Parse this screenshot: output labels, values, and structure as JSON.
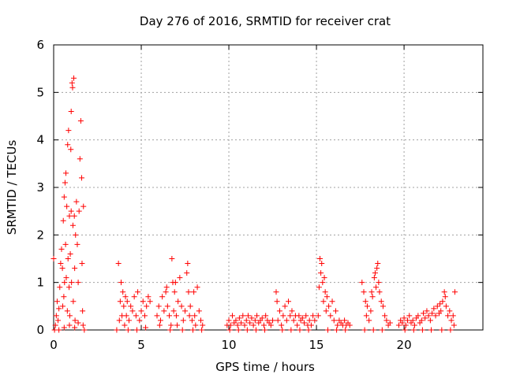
{
  "chart_data": {
    "type": "scatter",
    "title": "Day 276 of 2016, SRMTID for receiver crat",
    "xlabel": "GPS time / hours",
    "ylabel": "SRMTID / TECUs",
    "xlim": [
      0,
      24.5
    ],
    "ylim": [
      0,
      6
    ],
    "xticks": [
      0,
      5,
      10,
      15,
      20
    ],
    "yticks": [
      0,
      1,
      2,
      3,
      4,
      5,
      6
    ],
    "grid": true,
    "marker": "+",
    "marker_color": "#ff0000",
    "series": [
      {
        "name": "SRMTID",
        "points": [
          [
            0.0,
            1.5
          ],
          [
            0.1,
            0.1
          ],
          [
            0.15,
            0.3
          ],
          [
            0.2,
            0.6
          ],
          [
            0.25,
            0.2
          ],
          [
            0.3,
            0.45
          ],
          [
            0.35,
            0.9
          ],
          [
            0.4,
            1.4
          ],
          [
            0.45,
            1.7
          ],
          [
            0.5,
            1.3
          ],
          [
            0.52,
            0.5
          ],
          [
            0.55,
            2.3
          ],
          [
            0.58,
            0.7
          ],
          [
            0.6,
            2.8
          ],
          [
            0.62,
            1.0
          ],
          [
            0.65,
            3.1
          ],
          [
            0.68,
            1.8
          ],
          [
            0.7,
            3.3
          ],
          [
            0.72,
            1.1
          ],
          [
            0.75,
            2.6
          ],
          [
            0.78,
            0.4
          ],
          [
            0.8,
            3.9
          ],
          [
            0.82,
            1.5
          ],
          [
            0.85,
            4.2
          ],
          [
            0.88,
            0.9
          ],
          [
            0.9,
            2.4
          ],
          [
            0.92,
            0.3
          ],
          [
            0.95,
            1.6
          ],
          [
            0.98,
            3.8
          ],
          [
            1.0,
            2.5
          ],
          [
            1.02,
            1.0
          ],
          [
            1.05,
            5.2
          ],
          [
            1.08,
            5.1
          ],
          [
            1.1,
            2.2
          ],
          [
            1.12,
            0.6
          ],
          [
            1.15,
            5.3
          ],
          [
            1.18,
            2.4
          ],
          [
            1.2,
            1.3
          ],
          [
            1.22,
            0.2
          ],
          [
            1.25,
            2.0
          ],
          [
            1.3,
            2.7
          ],
          [
            1.35,
            1.8
          ],
          [
            1.4,
            1.0
          ],
          [
            1.45,
            2.5
          ],
          [
            1.5,
            3.6
          ],
          [
            1.55,
            4.4
          ],
          [
            1.6,
            3.2
          ],
          [
            1.62,
            1.4
          ],
          [
            1.65,
            0.4
          ],
          [
            1.68,
            0.1
          ],
          [
            1.7,
            2.6
          ],
          [
            1.75,
            0.0
          ],
          [
            1.0,
            4.6
          ],
          [
            0.05,
            0.0
          ],
          [
            0.3,
            0.0
          ],
          [
            0.6,
            0.05
          ],
          [
            0.9,
            0.1
          ],
          [
            1.2,
            0.05
          ],
          [
            1.4,
            0.15
          ],
          [
            3.7,
            1.4
          ],
          [
            3.75,
            0.2
          ],
          [
            3.8,
            0.6
          ],
          [
            3.85,
            1.0
          ],
          [
            3.9,
            0.3
          ],
          [
            3.95,
            0.8
          ],
          [
            4.0,
            0.5
          ],
          [
            4.05,
            0.1
          ],
          [
            4.1,
            0.7
          ],
          [
            4.15,
            0.3
          ],
          [
            4.2,
            0.6
          ],
          [
            4.3,
            0.2
          ],
          [
            4.4,
            0.5
          ],
          [
            4.5,
            0.4
          ],
          [
            4.6,
            0.7
          ],
          [
            4.7,
            0.3
          ],
          [
            4.8,
            0.8
          ],
          [
            4.9,
            0.2
          ],
          [
            5.0,
            0.4
          ],
          [
            5.1,
            0.6
          ],
          [
            5.2,
            0.3
          ],
          [
            5.3,
            0.5
          ],
          [
            5.4,
            0.7
          ],
          [
            5.5,
            0.6
          ],
          [
            3.6,
            0.0
          ],
          [
            4.25,
            0.0
          ],
          [
            4.75,
            0.0
          ],
          [
            5.25,
            0.05
          ],
          [
            5.9,
            0.3
          ],
          [
            6.0,
            0.5
          ],
          [
            6.05,
            0.1
          ],
          [
            6.1,
            0.2
          ],
          [
            6.2,
            0.7
          ],
          [
            6.3,
            0.4
          ],
          [
            6.4,
            0.8
          ],
          [
            6.45,
            0.9
          ],
          [
            6.5,
            0.5
          ],
          [
            6.6,
            0.3
          ],
          [
            6.7,
            0.1
          ],
          [
            6.75,
            1.5
          ],
          [
            6.8,
            1.0
          ],
          [
            6.85,
            0.4
          ],
          [
            6.9,
            0.8
          ],
          [
            6.95,
            1.0
          ],
          [
            7.0,
            0.3
          ],
          [
            7.05,
            0.1
          ],
          [
            7.1,
            0.6
          ],
          [
            7.2,
            1.1
          ],
          [
            7.3,
            0.5
          ],
          [
            7.4,
            0.2
          ],
          [
            7.5,
            0.4
          ],
          [
            7.6,
            1.2
          ],
          [
            7.65,
            1.4
          ],
          [
            7.7,
            0.8
          ],
          [
            7.75,
            0.3
          ],
          [
            7.8,
            0.5
          ],
          [
            7.9,
            0.2
          ],
          [
            8.0,
            0.8
          ],
          [
            8.05,
            0.3
          ],
          [
            8.1,
            0.1
          ],
          [
            8.2,
            0.9
          ],
          [
            8.3,
            0.4
          ],
          [
            8.4,
            0.2
          ],
          [
            8.5,
            0.1
          ],
          [
            6.65,
            0.0
          ],
          [
            7.35,
            0.0
          ],
          [
            7.95,
            0.0
          ],
          [
            8.45,
            0.0
          ],
          [
            9.9,
            0.1
          ],
          [
            10.0,
            0.2
          ],
          [
            10.1,
            0.1
          ],
          [
            10.2,
            0.3
          ],
          [
            10.3,
            0.15
          ],
          [
            10.4,
            0.2
          ],
          [
            10.5,
            0.1
          ],
          [
            10.6,
            0.25
          ],
          [
            10.7,
            0.15
          ],
          [
            10.8,
            0.3
          ],
          [
            10.9,
            0.1
          ],
          [
            11.0,
            0.2
          ],
          [
            11.1,
            0.3
          ],
          [
            11.2,
            0.15
          ],
          [
            11.3,
            0.25
          ],
          [
            11.4,
            0.1
          ],
          [
            11.5,
            0.2
          ],
          [
            11.6,
            0.3
          ],
          [
            11.7,
            0.15
          ],
          [
            11.8,
            0.2
          ],
          [
            11.9,
            0.25
          ],
          [
            12.0,
            0.1
          ],
          [
            12.1,
            0.3
          ],
          [
            12.2,
            0.2
          ],
          [
            12.3,
            0.15
          ],
          [
            12.4,
            0.1
          ],
          [
            12.5,
            0.2
          ],
          [
            10.05,
            0.0
          ],
          [
            10.55,
            0.0
          ],
          [
            11.05,
            0.0
          ],
          [
            11.55,
            0.0
          ],
          [
            12.05,
            0.0
          ],
          [
            12.7,
            0.8
          ],
          [
            12.75,
            0.6
          ],
          [
            12.8,
            0.2
          ],
          [
            12.9,
            0.4
          ],
          [
            13.0,
            0.1
          ],
          [
            13.1,
            0.3
          ],
          [
            13.2,
            0.5
          ],
          [
            13.3,
            0.2
          ],
          [
            13.4,
            0.6
          ],
          [
            13.5,
            0.3
          ],
          [
            13.6,
            0.4
          ],
          [
            13.7,
            0.2
          ],
          [
            13.8,
            0.3
          ],
          [
            13.9,
            0.1
          ],
          [
            14.0,
            0.3
          ],
          [
            14.1,
            0.2
          ],
          [
            14.2,
            0.25
          ],
          [
            14.3,
            0.15
          ],
          [
            14.4,
            0.3
          ],
          [
            14.5,
            0.1
          ],
          [
            14.6,
            0.2
          ],
          [
            14.7,
            0.1
          ],
          [
            14.8,
            0.3
          ],
          [
            14.9,
            0.2
          ],
          [
            13.05,
            0.0
          ],
          [
            13.55,
            0.0
          ],
          [
            14.05,
            0.0
          ],
          [
            14.55,
            0.0
          ],
          [
            15.1,
            0.3
          ],
          [
            15.15,
            0.9
          ],
          [
            15.2,
            1.5
          ],
          [
            15.25,
            1.2
          ],
          [
            15.3,
            1.4
          ],
          [
            15.35,
            1.0
          ],
          [
            15.4,
            0.6
          ],
          [
            15.45,
            1.1
          ],
          [
            15.5,
            0.8
          ],
          [
            15.55,
            0.4
          ],
          [
            15.6,
            0.7
          ],
          [
            15.7,
            0.5
          ],
          [
            15.8,
            0.3
          ],
          [
            15.9,
            0.6
          ],
          [
            16.0,
            0.2
          ],
          [
            16.1,
            0.4
          ],
          [
            16.2,
            0.1
          ],
          [
            16.3,
            0.2
          ],
          [
            16.4,
            0.15
          ],
          [
            16.5,
            0.1
          ],
          [
            16.6,
            0.2
          ],
          [
            16.7,
            0.1
          ],
          [
            16.8,
            0.15
          ],
          [
            16.9,
            0.1
          ],
          [
            15.65,
            0.0
          ],
          [
            16.15,
            0.0
          ],
          [
            16.65,
            0.0
          ],
          [
            17.6,
            1.0
          ],
          [
            17.7,
            0.8
          ],
          [
            17.8,
            0.6
          ],
          [
            17.85,
            0.3
          ],
          [
            17.9,
            0.5
          ],
          [
            18.0,
            0.2
          ],
          [
            18.1,
            0.4
          ],
          [
            18.15,
            0.8
          ],
          [
            18.2,
            0.7
          ],
          [
            18.3,
            1.1
          ],
          [
            18.35,
            1.2
          ],
          [
            18.4,
            0.9
          ],
          [
            18.45,
            1.3
          ],
          [
            18.5,
            1.4
          ],
          [
            18.55,
            1.0
          ],
          [
            18.6,
            0.8
          ],
          [
            18.7,
            0.6
          ],
          [
            18.8,
            0.5
          ],
          [
            18.9,
            0.3
          ],
          [
            19.0,
            0.2
          ],
          [
            19.1,
            0.1
          ],
          [
            19.2,
            0.15
          ],
          [
            17.75,
            0.0
          ],
          [
            18.25,
            0.0
          ],
          [
            18.75,
            0.0
          ],
          [
            19.7,
            0.1
          ],
          [
            19.8,
            0.2
          ],
          [
            19.9,
            0.15
          ],
          [
            20.0,
            0.25
          ],
          [
            20.1,
            0.1
          ],
          [
            20.2,
            0.2
          ],
          [
            20.3,
            0.3
          ],
          [
            20.4,
            0.15
          ],
          [
            20.5,
            0.2
          ],
          [
            20.6,
            0.1
          ],
          [
            20.7,
            0.25
          ],
          [
            20.8,
            0.3
          ],
          [
            20.9,
            0.15
          ],
          [
            21.0,
            0.2
          ],
          [
            21.1,
            0.35
          ],
          [
            21.2,
            0.25
          ],
          [
            21.3,
            0.4
          ],
          [
            21.4,
            0.3
          ],
          [
            21.5,
            0.2
          ],
          [
            21.6,
            0.35
          ],
          [
            21.7,
            0.45
          ],
          [
            21.8,
            0.3
          ],
          [
            21.9,
            0.5
          ],
          [
            22.0,
            0.35
          ],
          [
            22.05,
            0.55
          ],
          [
            22.1,
            0.4
          ],
          [
            22.2,
            0.6
          ],
          [
            22.3,
            0.8
          ],
          [
            22.35,
            0.7
          ],
          [
            22.4,
            0.5
          ],
          [
            22.5,
            0.3
          ],
          [
            22.6,
            0.4
          ],
          [
            22.7,
            0.2
          ],
          [
            22.8,
            0.3
          ],
          [
            22.85,
            0.1
          ],
          [
            22.9,
            0.8
          ],
          [
            20.05,
            0.0
          ],
          [
            20.55,
            0.0
          ],
          [
            21.05,
            0.0
          ],
          [
            21.55,
            0.0
          ],
          [
            22.15,
            0.0
          ],
          [
            22.65,
            0.0
          ]
        ]
      }
    ]
  }
}
